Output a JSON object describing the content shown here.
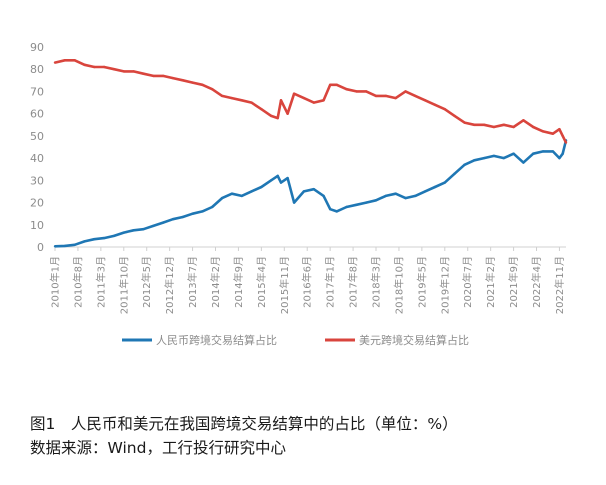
{
  "chart_data": {
    "type": "line",
    "title": "",
    "xlabel": "",
    "ylabel": "",
    "ylim": [
      0,
      90
    ],
    "yticks": [
      0,
      10,
      20,
      30,
      40,
      50,
      60,
      70,
      80,
      90
    ],
    "grid": false,
    "legend_position": "bottom",
    "x_tick_labels": [
      "2010年1月",
      "2010年8月",
      "2011年3月",
      "2011年10月",
      "2012年5月",
      "2012年12月",
      "2013年7月",
      "2014年2月",
      "2014年9月",
      "2015年4月",
      "2015年11月",
      "2016年6月",
      "2017年1月",
      "2017年8月",
      "2018年3月",
      "2018年10月",
      "2019年5月",
      "2019年12月",
      "2020年7月",
      "2021年2月",
      "2021年9月",
      "2022年4月",
      "2022年11月"
    ],
    "x_start": "2010-01",
    "x_end": "2023-01",
    "series": [
      {
        "name": "人民币跨境交易结算占比",
        "color": "#1f77b4",
        "points": [
          [
            "2010-01",
            0.3
          ],
          [
            "2010-04",
            0.5
          ],
          [
            "2010-07",
            1
          ],
          [
            "2010-10",
            2.5
          ],
          [
            "2011-01",
            3.5
          ],
          [
            "2011-04",
            4
          ],
          [
            "2011-07",
            5
          ],
          [
            "2011-10",
            6.5
          ],
          [
            "2012-01",
            7.5
          ],
          [
            "2012-04",
            8
          ],
          [
            "2012-07",
            9.5
          ],
          [
            "2012-10",
            11
          ],
          [
            "2013-01",
            12.5
          ],
          [
            "2013-04",
            13.5
          ],
          [
            "2013-07",
            15
          ],
          [
            "2013-10",
            16
          ],
          [
            "2014-01",
            18
          ],
          [
            "2014-04",
            22
          ],
          [
            "2014-07",
            24
          ],
          [
            "2014-10",
            23
          ],
          [
            "2015-01",
            25
          ],
          [
            "2015-04",
            27
          ],
          [
            "2015-07",
            30
          ],
          [
            "2015-09",
            32
          ],
          [
            "2015-10",
            29
          ],
          [
            "2015-12",
            31
          ],
          [
            "2016-02",
            20
          ],
          [
            "2016-05",
            25
          ],
          [
            "2016-08",
            26
          ],
          [
            "2016-11",
            23
          ],
          [
            "2017-01",
            17
          ],
          [
            "2017-03",
            16
          ],
          [
            "2017-06",
            18
          ],
          [
            "2017-09",
            19
          ],
          [
            "2017-12",
            20
          ],
          [
            "2018-03",
            21
          ],
          [
            "2018-06",
            23
          ],
          [
            "2018-09",
            24
          ],
          [
            "2018-12",
            22
          ],
          [
            "2019-03",
            23
          ],
          [
            "2019-06",
            25
          ],
          [
            "2019-09",
            27
          ],
          [
            "2019-12",
            29
          ],
          [
            "2020-03",
            33
          ],
          [
            "2020-06",
            37
          ],
          [
            "2020-09",
            39
          ],
          [
            "2020-12",
            40
          ],
          [
            "2021-03",
            41
          ],
          [
            "2021-06",
            40
          ],
          [
            "2021-09",
            42
          ],
          [
            "2021-12",
            38
          ],
          [
            "2022-03",
            42
          ],
          [
            "2022-06",
            43
          ],
          [
            "2022-09",
            43
          ],
          [
            "2022-11",
            40
          ],
          [
            "2022-12",
            42
          ],
          [
            "2023-01",
            48
          ]
        ]
      },
      {
        "name": "美元跨境交易结算占比",
        "color": "#d9453d",
        "points": [
          [
            "2010-01",
            83
          ],
          [
            "2010-04",
            84
          ],
          [
            "2010-07",
            84
          ],
          [
            "2010-10",
            82
          ],
          [
            "2011-01",
            81
          ],
          [
            "2011-04",
            81
          ],
          [
            "2011-07",
            80
          ],
          [
            "2011-10",
            79
          ],
          [
            "2012-01",
            79
          ],
          [
            "2012-04",
            78
          ],
          [
            "2012-07",
            77
          ],
          [
            "2012-10",
            77
          ],
          [
            "2013-01",
            76
          ],
          [
            "2013-04",
            75
          ],
          [
            "2013-07",
            74
          ],
          [
            "2013-10",
            73
          ],
          [
            "2014-01",
            71
          ],
          [
            "2014-04",
            68
          ],
          [
            "2014-07",
            67
          ],
          [
            "2014-10",
            66
          ],
          [
            "2015-01",
            65
          ],
          [
            "2015-04",
            62
          ],
          [
            "2015-07",
            59
          ],
          [
            "2015-09",
            58
          ],
          [
            "2015-10",
            66
          ],
          [
            "2015-12",
            60
          ],
          [
            "2016-02",
            69
          ],
          [
            "2016-05",
            67
          ],
          [
            "2016-08",
            65
          ],
          [
            "2016-11",
            66
          ],
          [
            "2017-01",
            73
          ],
          [
            "2017-03",
            73
          ],
          [
            "2017-06",
            71
          ],
          [
            "2017-09",
            70
          ],
          [
            "2017-12",
            70
          ],
          [
            "2018-03",
            68
          ],
          [
            "2018-06",
            68
          ],
          [
            "2018-09",
            67
          ],
          [
            "2018-12",
            70
          ],
          [
            "2019-03",
            68
          ],
          [
            "2019-06",
            66
          ],
          [
            "2019-09",
            64
          ],
          [
            "2019-12",
            62
          ],
          [
            "2020-03",
            59
          ],
          [
            "2020-06",
            56
          ],
          [
            "2020-09",
            55
          ],
          [
            "2020-12",
            55
          ],
          [
            "2021-03",
            54
          ],
          [
            "2021-06",
            55
          ],
          [
            "2021-09",
            54
          ],
          [
            "2021-12",
            57
          ],
          [
            "2022-03",
            54
          ],
          [
            "2022-06",
            52
          ],
          [
            "2022-09",
            51
          ],
          [
            "2022-11",
            53
          ],
          [
            "2022-12",
            50
          ],
          [
            "2023-01",
            47
          ]
        ]
      }
    ]
  },
  "caption": {
    "line1": "图1　人民币和美元在我国跨境交易结算中的占比（单位：%）",
    "line2": "数据来源：Wind，工行投行研究中心"
  }
}
